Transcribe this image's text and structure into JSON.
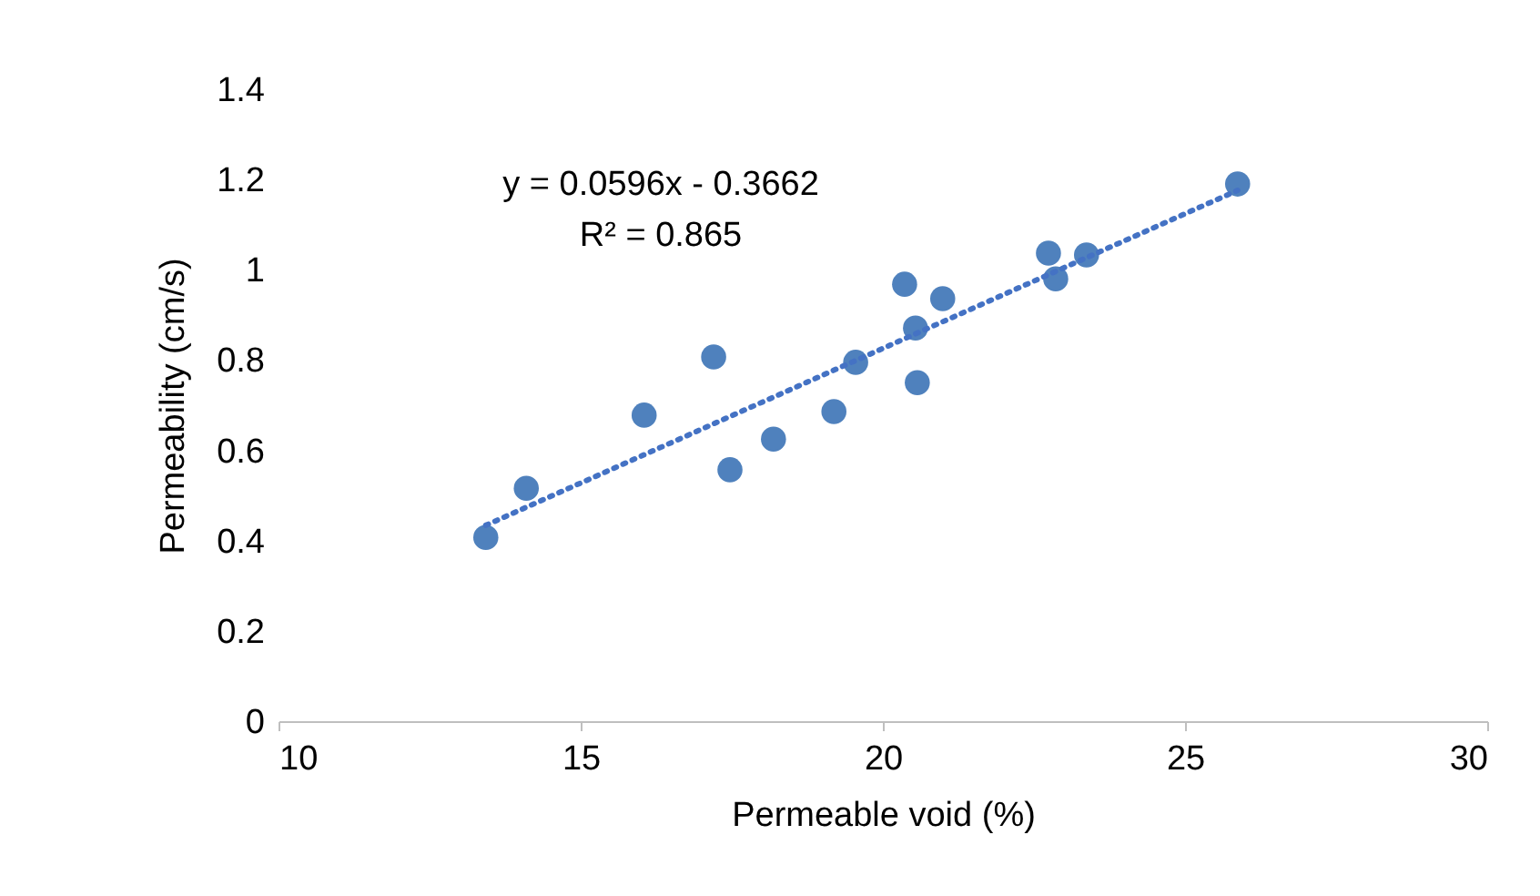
{
  "chart_data": {
    "type": "scatter",
    "xlabel": "Permeable void (%)",
    "ylabel": "Permeability (cm/s)",
    "annotations": [
      "y = 0.0596x - 0.3662",
      "R² = 0.865"
    ],
    "xlim": [
      10,
      30
    ],
    "xticks": [
      10,
      15,
      20,
      25,
      30
    ],
    "ylim": [
      0,
      1.4
    ],
    "yticks": [
      0,
      0.2,
      0.4,
      0.6,
      0.8,
      1,
      1.2,
      1.4
    ],
    "grid": false,
    "series": [
      {
        "marker": "circle",
        "color": "#4f81bd",
        "x": [
          13.43,
          14.1,
          16.05,
          17.2,
          17.47,
          18.19,
          19.19,
          19.55,
          20.36,
          20.54,
          20.57,
          20.99,
          22.74,
          22.86,
          23.37,
          25.87
        ],
        "values": [
          0.407,
          0.516,
          0.678,
          0.807,
          0.557,
          0.625,
          0.686,
          0.795,
          0.968,
          0.871,
          0.75,
          0.936,
          1.037,
          0.98,
          1.033,
          1.19
        ]
      },
      {
        "type": "line",
        "line_style": "dotted",
        "color": "#4472c4",
        "x": [
          13.43,
          25.87
        ],
        "values": [
          0.434,
          1.176
        ]
      }
    ]
  }
}
